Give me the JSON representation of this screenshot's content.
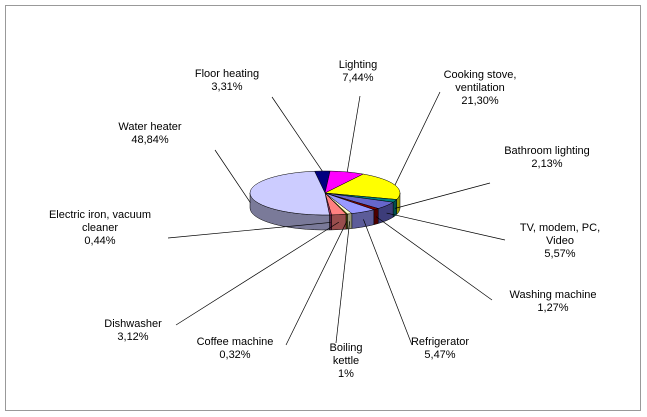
{
  "chart_data": {
    "type": "pie3d",
    "categories": [
      "Floor heating",
      "Lighting",
      "Cooking stove, ventilation",
      "Bathroom lighting",
      "TV, modem, PC, Video",
      "Washing machine",
      "Refrigerator",
      "Boiling kettle",
      "Coffee machine",
      "Dishwasher",
      "Electric iron, vacuum cleaner",
      "Water heater"
    ],
    "values": [
      3.31,
      7.44,
      21.3,
      2.13,
      5.57,
      1.27,
      5.47,
      1,
      0.32,
      3.12,
      0.44,
      48.84
    ],
    "value_labels": [
      "3,31%",
      "7,44%",
      "21,30%",
      "2,13%",
      "5,57%",
      "1,27%",
      "5,47%",
      "1%",
      "0,32%",
      "3,12%",
      "0,44%",
      "48,84%"
    ],
    "colors": [
      "#000080",
      "#ff00ff",
      "#ffff00",
      "#008080",
      "#6666cc",
      "#800000",
      "#9999ff",
      "#ffffcc",
      "#808000",
      "#ff8080",
      "#993366",
      "#ccccff"
    ]
  }
}
